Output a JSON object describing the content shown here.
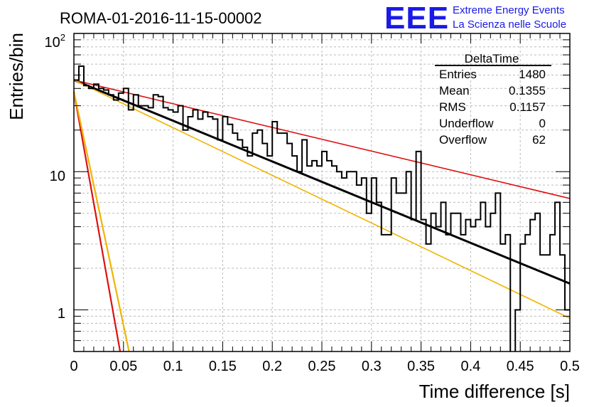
{
  "header": {
    "run_title": "ROMA-01-2016-11-15-00002",
    "logo_text": "EEE",
    "logo_line1": "Extreme Energy Events",
    "logo_line2": "La Scienza nelle Scuole",
    "logo_color": "#1a1ae6"
  },
  "stats_box": {
    "title": "DeltaTime",
    "rows": [
      {
        "label": "Entries",
        "value": "1480"
      },
      {
        "label": "Mean",
        "value": "0.1355"
      },
      {
        "label": "RMS",
        "value": "0.1157"
      },
      {
        "label": "Underflow",
        "value": "0"
      },
      {
        "label": "Overflow",
        "value": "62"
      }
    ]
  },
  "chart_data": {
    "type": "histogram",
    "title": "ROMA-01-2016-11-15-00002",
    "xlabel": "Time difference [s]",
    "ylabel": "Entries/bin",
    "xlim": [
      0,
      0.5
    ],
    "ylim": [
      0.5,
      100
    ],
    "yscale": "log",
    "grid": true,
    "x_ticks": [
      "0",
      "0.05",
      "0.1",
      "0.15",
      "0.2",
      "0.25",
      "0.3",
      "0.35",
      "0.4",
      "0.45",
      "0.5"
    ],
    "y_tick_labels": [
      "1",
      "10",
      "10^2"
    ],
    "bin_width": 0.005,
    "histogram": [
      46,
      58,
      42,
      40,
      43,
      40,
      39,
      36,
      33,
      37,
      40,
      28,
      36,
      30,
      30,
      29,
      36,
      35,
      29,
      28,
      27,
      30,
      20,
      25,
      28,
      24,
      27,
      25,
      24,
      17,
      25,
      22,
      19,
      17,
      15,
      13,
      19,
      20,
      16,
      13,
      23,
      19,
      19,
      16,
      13,
      10,
      17,
      11,
      12,
      11,
      14,
      12,
      11,
      10,
      9,
      10,
      10,
      8,
      9,
      5,
      9,
      6,
      3.5,
      3.5,
      9,
      7,
      7,
      10,
      4.5,
      14,
      4.5,
      3,
      5,
      4,
      6,
      3.5,
      5,
      5,
      3.5,
      4.5,
      4,
      4.5,
      6,
      4,
      5,
      7,
      3,
      3.5,
      0.3,
      1,
      3,
      3.5,
      4.5,
      5,
      2.5,
      2.5,
      3.5,
      6,
      2.5,
      1
    ],
    "fits": [
      {
        "color": "#000000",
        "width": 3,
        "x": [
          0,
          0.5
        ],
        "y": [
          46,
          1.55
        ]
      },
      {
        "color": "#dd1111",
        "width": 1.6,
        "x": [
          0,
          0.5
        ],
        "y": [
          46,
          6.4
        ]
      },
      {
        "color": "#f0b400",
        "width": 1.6,
        "x": [
          0,
          0.5
        ],
        "y": [
          46,
          0.87
        ]
      },
      {
        "color": "#dd1111",
        "width": 2.2,
        "x": [
          0,
          0.0466
        ],
        "y": [
          38,
          0.5
        ]
      },
      {
        "color": "#f0b400",
        "width": 2.2,
        "x": [
          0,
          0.0556
        ],
        "y": [
          38,
          0.5
        ]
      }
    ]
  }
}
